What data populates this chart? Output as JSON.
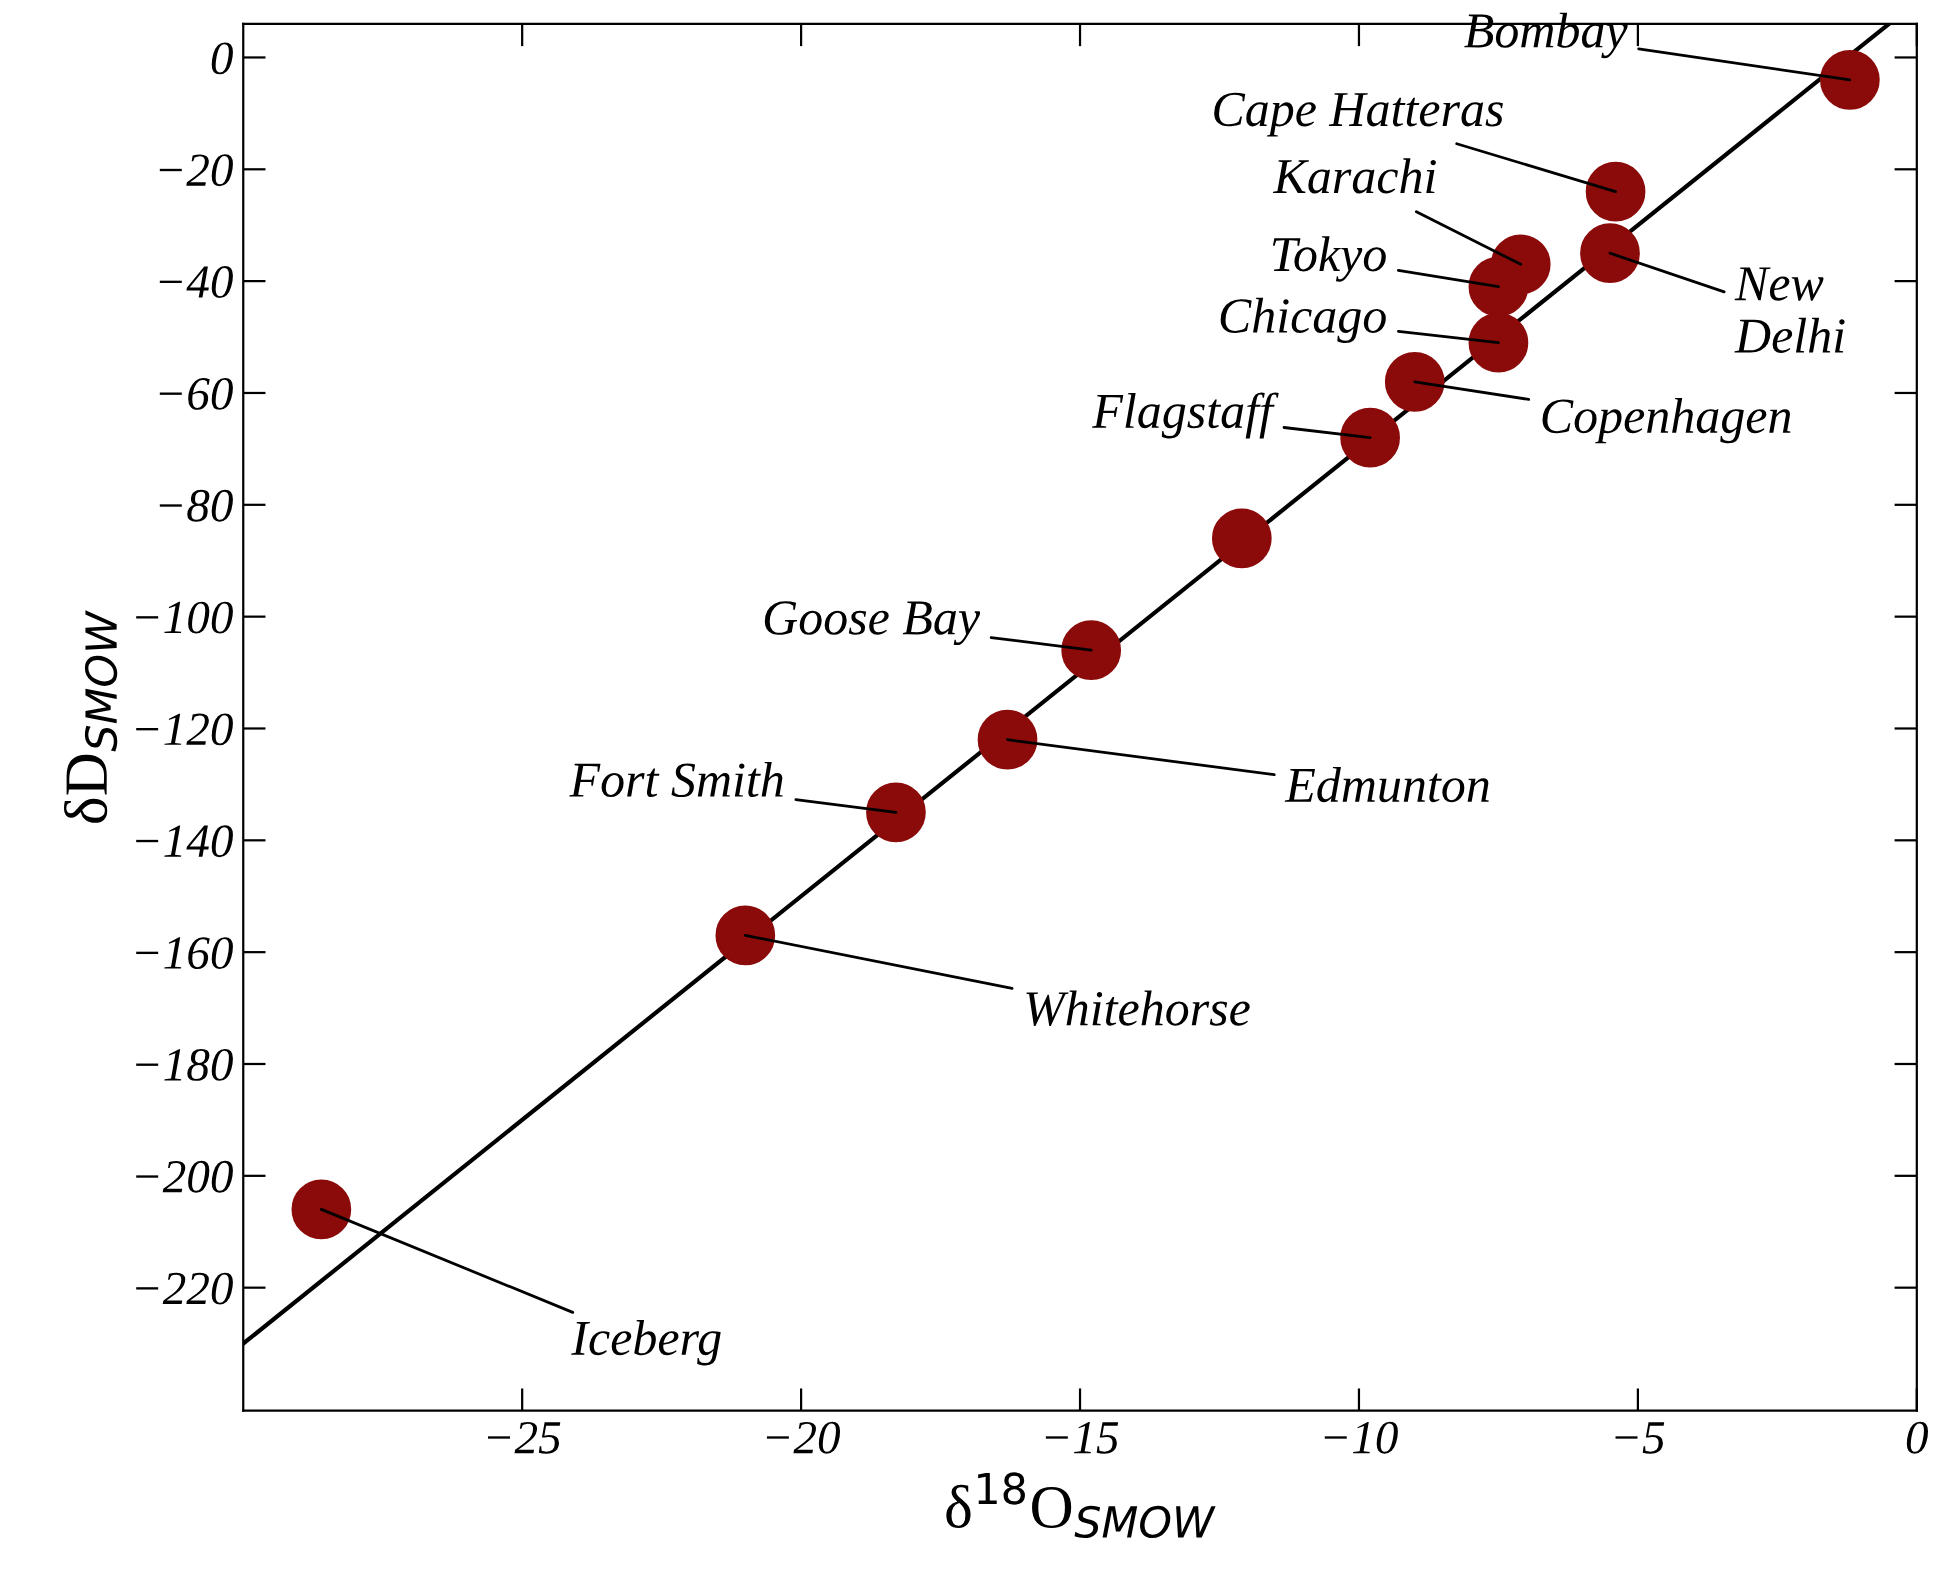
{
  "chart_data": {
    "type": "scatter",
    "xlabel": "δ$^{18}$O$_{SMOW}$",
    "ylabel": "δD$_{SMOW}$",
    "xlim": [
      -30,
      0
    ],
    "ylim": [
      -242,
      6
    ],
    "xticks": [
      -25,
      -20,
      -15,
      -10,
      -5,
      0
    ],
    "yticks": [
      0,
      -20,
      -40,
      -60,
      -80,
      -100,
      -120,
      -140,
      -160,
      -180,
      -200,
      -220
    ],
    "grid": false,
    "legend": false,
    "series": [
      {
        "type": "line",
        "marker": "none",
        "color": "#000000",
        "x": [
          -30,
          -0.5
        ],
        "values": [
          -230,
          6
        ]
      },
      {
        "marker": "circle",
        "color": "#8b0a0a",
        "x": [
          -1.2,
          -5.4,
          -5.5,
          -7.1,
          -7.5,
          -7.5,
          -9.0,
          -9.8,
          -12.1,
          -14.8,
          -16.3,
          -18.3,
          -21.0,
          -28.6
        ],
        "values": [
          -4,
          -24,
          -35,
          -37,
          -41,
          -51,
          -58,
          -68,
          -86,
          -106,
          -122,
          -135,
          -157,
          -206
        ]
      }
    ],
    "annotations": [
      {
        "text": "Bombay",
        "x": -1.2,
        "y": -4
      },
      {
        "text": "Cape Hatteras",
        "x": -5.4,
        "y": -24
      },
      {
        "text": "New\nDelhi",
        "x": -5.5,
        "y": -35
      },
      {
        "text": "Karachi",
        "x": -7.1,
        "y": -37
      },
      {
        "text": "Tokyo",
        "x": -7.5,
        "y": -41
      },
      {
        "text": "Chicago",
        "x": -7.5,
        "y": -51
      },
      {
        "text": "Copenhagen",
        "x": -9.0,
        "y": -58
      },
      {
        "text": "Flagstaff",
        "x": -9.8,
        "y": -68
      },
      {
        "text": "Goose Bay",
        "x": -14.8,
        "y": -106
      },
      {
        "text": "Edmunton",
        "x": -16.3,
        "y": -122
      },
      {
        "text": "Fort Smith",
        "x": -18.3,
        "y": -135
      },
      {
        "text": "Whitehorse",
        "x": -21.0,
        "y": -157
      },
      {
        "text": "Iceberg",
        "x": -28.6,
        "y": -206
      }
    ]
  }
}
